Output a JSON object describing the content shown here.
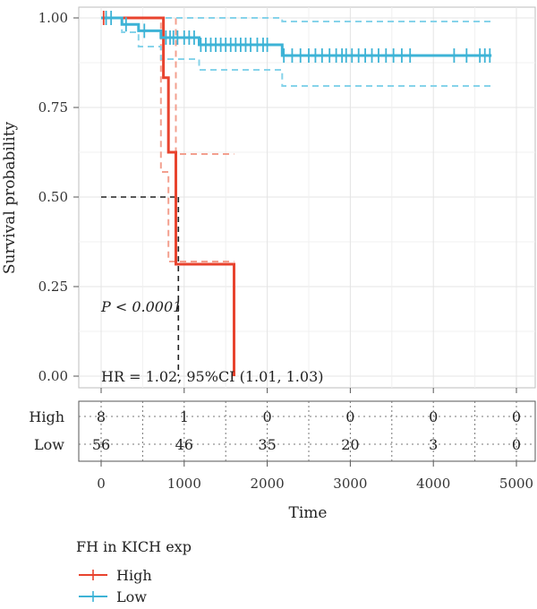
{
  "chart_data": {
    "type": "line",
    "subtype": "kaplan-meier",
    "ylabel": "Survival probability",
    "xlabel": "Time",
    "xlim": [
      0,
      5000
    ],
    "ylim": [
      0,
      1
    ],
    "x_ticks": [
      0,
      1000,
      2000,
      3000,
      4000,
      5000
    ],
    "y_ticks": [
      "0.00",
      "0.25",
      "0.50",
      "0.75",
      "1.00"
    ],
    "grid": true,
    "annotations": {
      "pvalue": "P < 0.0001",
      "hr": "HR = 1.02, 95%CI (1.01, 1.03)"
    },
    "median": {
      "y": 0.5,
      "x": 930
    },
    "legend": {
      "title": "FH in KICH exp",
      "position": "bottom",
      "items": [
        {
          "name": "High",
          "color": "#e8432e"
        },
        {
          "name": "Low",
          "color": "#3db3d6"
        }
      ]
    },
    "series": [
      {
        "name": "High",
        "color": "#e8432e",
        "steps": [
          [
            0,
            1.0
          ],
          [
            750,
            1.0
          ],
          [
            750,
            0.833
          ],
          [
            810,
            0.833
          ],
          [
            810,
            0.625
          ],
          [
            900,
            0.625
          ],
          [
            900,
            0.3125
          ],
          [
            1600,
            0.3125
          ],
          [
            1600,
            0.0
          ]
        ],
        "ci_upper": [
          [
            0,
            1.0
          ],
          [
            750,
            1.0
          ],
          [
            750,
            1.0
          ],
          [
            900,
            1.0
          ],
          [
            900,
            0.62
          ],
          [
            1600,
            0.62
          ]
        ],
        "ci_lower": [
          [
            0,
            1.0
          ],
          [
            720,
            1.0
          ],
          [
            720,
            0.57
          ],
          [
            810,
            0.57
          ],
          [
            810,
            0.32
          ],
          [
            1600,
            0.32
          ]
        ],
        "censored": [
          [
            30,
            1.0
          ]
        ]
      },
      {
        "name": "Low",
        "color": "#3db3d6",
        "steps": [
          [
            0,
            1.0
          ],
          [
            250,
            1.0
          ],
          [
            250,
            0.982
          ],
          [
            450,
            0.982
          ],
          [
            450,
            0.964
          ],
          [
            720,
            0.964
          ],
          [
            720,
            0.945
          ],
          [
            1180,
            0.945
          ],
          [
            1180,
            0.925
          ],
          [
            2180,
            0.925
          ],
          [
            2180,
            0.895
          ],
          [
            4700,
            0.895
          ]
        ],
        "ci_upper": [
          [
            0,
            1.0
          ],
          [
            2180,
            1.0
          ],
          [
            2180,
            0.99
          ],
          [
            4700,
            0.99
          ]
        ],
        "ci_lower": [
          [
            0,
            1.0
          ],
          [
            250,
            1.0
          ],
          [
            250,
            0.96
          ],
          [
            450,
            0.96
          ],
          [
            450,
            0.92
          ],
          [
            720,
            0.92
          ],
          [
            720,
            0.885
          ],
          [
            1180,
            0.885
          ],
          [
            1180,
            0.855
          ],
          [
            2180,
            0.855
          ],
          [
            2180,
            0.81
          ],
          [
            4700,
            0.81
          ]
        ],
        "censored": [
          [
            60,
            1.0
          ],
          [
            120,
            1.0
          ],
          [
            300,
            0.982
          ],
          [
            520,
            0.964
          ],
          [
            780,
            0.945
          ],
          [
            830,
            0.945
          ],
          [
            870,
            0.945
          ],
          [
            920,
            0.945
          ],
          [
            1000,
            0.945
          ],
          [
            1060,
            0.945
          ],
          [
            1120,
            0.945
          ],
          [
            1200,
            0.925
          ],
          [
            1260,
            0.925
          ],
          [
            1320,
            0.925
          ],
          [
            1380,
            0.925
          ],
          [
            1440,
            0.925
          ],
          [
            1500,
            0.925
          ],
          [
            1560,
            0.925
          ],
          [
            1620,
            0.925
          ],
          [
            1680,
            0.925
          ],
          [
            1740,
            0.925
          ],
          [
            1800,
            0.925
          ],
          [
            1880,
            0.925
          ],
          [
            1950,
            0.925
          ],
          [
            2000,
            0.925
          ],
          [
            2200,
            0.895
          ],
          [
            2300,
            0.895
          ],
          [
            2400,
            0.895
          ],
          [
            2500,
            0.895
          ],
          [
            2580,
            0.895
          ],
          [
            2660,
            0.895
          ],
          [
            2750,
            0.895
          ],
          [
            2830,
            0.895
          ],
          [
            2900,
            0.895
          ],
          [
            2950,
            0.895
          ],
          [
            3020,
            0.895
          ],
          [
            3100,
            0.895
          ],
          [
            3180,
            0.895
          ],
          [
            3260,
            0.895
          ],
          [
            3340,
            0.895
          ],
          [
            3430,
            0.895
          ],
          [
            3520,
            0.895
          ],
          [
            3620,
            0.895
          ],
          [
            3720,
            0.895
          ],
          [
            4250,
            0.895
          ],
          [
            4400,
            0.895
          ],
          [
            4560,
            0.895
          ],
          [
            4620,
            0.895
          ],
          [
            4680,
            0.895
          ]
        ]
      }
    ]
  },
  "risk_table": {
    "rows": [
      {
        "label": "High",
        "values": [
          "8",
          "1",
          "0",
          "0",
          "0",
          "0"
        ]
      },
      {
        "label": "Low",
        "values": [
          "56",
          "46",
          "35",
          "20",
          "3",
          "0"
        ]
      }
    ]
  }
}
